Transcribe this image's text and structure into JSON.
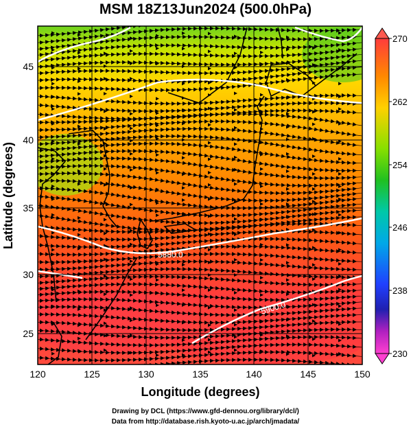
{
  "title": "MSM 18Z13Jun2024 (500.0hPa)",
  "map": {
    "xlabel": "Longitude (degrees)",
    "ylabel": "Latitude  (degrees)",
    "lon_range": [
      120,
      150
    ],
    "lat_range": [
      22.5,
      48
    ],
    "lon_ticks": [
      "120",
      "125",
      "130",
      "135",
      "140",
      "145",
      "150"
    ],
    "lat_ticks": [
      "25",
      "30",
      "35",
      "40",
      "45"
    ],
    "contour_labels": [
      "5880.0",
      "5900.0"
    ],
    "contour_color": "#ffffff",
    "coastline_color": "#000000",
    "streamline_color": "#000000"
  },
  "colorbar": {
    "ticks": [
      "270",
      "262",
      "254",
      "246",
      "238",
      "230"
    ],
    "min": 230,
    "max": 270,
    "colors": [
      "#ff3c3c",
      "#ff8800",
      "#ffe000",
      "#99ee00",
      "#22cc22",
      "#00d0a0",
      "#00b0e0",
      "#2050ff",
      "#2020c0",
      "#c020c0",
      "#ff40d0"
    ]
  },
  "credits": {
    "line1": "Drawing by DCL (https://www.gfd-dennou.org/library/dcl/)",
    "line2": "Data from http://database.rish.kyoto-u.ac.jp/arch/jmadata/"
  }
}
